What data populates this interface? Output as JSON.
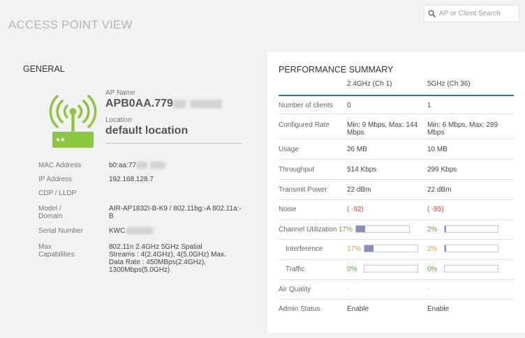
{
  "page_title": "ACCESS POINT VIEW",
  "search": {
    "placeholder": "AP or Client Search"
  },
  "general": {
    "title": "GENERAL",
    "ap_name_label": "AP Name",
    "ap_name_value": "APB0AA.779",
    "location_label": "Location",
    "location_value": "default location",
    "rows": [
      {
        "key": "MAC Address",
        "value": "b0:aa:77"
      },
      {
        "key": "IP Address",
        "value": "192.168.128.7"
      },
      {
        "key": "CDP / LLDP",
        "value": ""
      },
      {
        "key": "Model / Domain",
        "value": "AIR-AP1832I-B-K9 / 802.11bg:-A 802.11a:-B"
      },
      {
        "key": "Serial Number",
        "value": "KWC"
      },
      {
        "key": "Max Capabilities",
        "value": "802.11n 2.4GHz 5GHz Spatial Streams : 4(2.4GHz), 4(5.0GHz) Max. Data Rate : 450MBps(2.4GHz), 1300Mbps(5.0GHz)"
      }
    ]
  },
  "performance": {
    "title": "PERFORMANCE SUMMARY",
    "col1": "2.4GHz (Ch 1)",
    "col2": "5GHz (Ch 36)",
    "rows": {
      "clients": {
        "label": "Number of clients",
        "c1": "0",
        "c2": "1"
      },
      "rate": {
        "label": "Configured Rate",
        "c1": "Min: 9 Mbps, Max: 144 Mbps",
        "c2": "Min: 6 Mbps, Max: 289 Mbps"
      },
      "usage": {
        "label": "Usage",
        "c1": "26 MB",
        "c2": "10 MB"
      },
      "throughput": {
        "label": "Throughput",
        "c1": "514 Kbps",
        "c2": "299 Kbps"
      },
      "tx_power": {
        "label": "Transmit Power",
        "c1": "22 dBm",
        "c2": "22 dBm"
      },
      "noise": {
        "label": "Noise",
        "c1": "( -92)",
        "c2": "( -85)"
      },
      "channel_util": {
        "label": "Channel Utilization",
        "c1": "17%",
        "c1_level": 17,
        "c2": "2%",
        "c2_level": 2
      },
      "interference": {
        "label": "Interference",
        "c1": "17%",
        "c1_level": 17,
        "c2": "2%",
        "c2_level": 2
      },
      "traffic": {
        "label": "Traffic",
        "c1": "0%",
        "c1_level": 0,
        "c2": "0%",
        "c2_level": 0
      },
      "air_quality": {
        "label": "Air Quality",
        "c1": "-",
        "c2": "-"
      },
      "admin_status": {
        "label": "Admin Status",
        "c1": "Enable",
        "c2": "Enable"
      }
    }
  },
  "colors": {
    "accent": "#2f6fb3",
    "ap_icon": "#8dc63f",
    "bar_fill": "#8b8fb8",
    "noise": "#e0443c",
    "green": "#6aa33a",
    "orange": "#f0a030"
  }
}
